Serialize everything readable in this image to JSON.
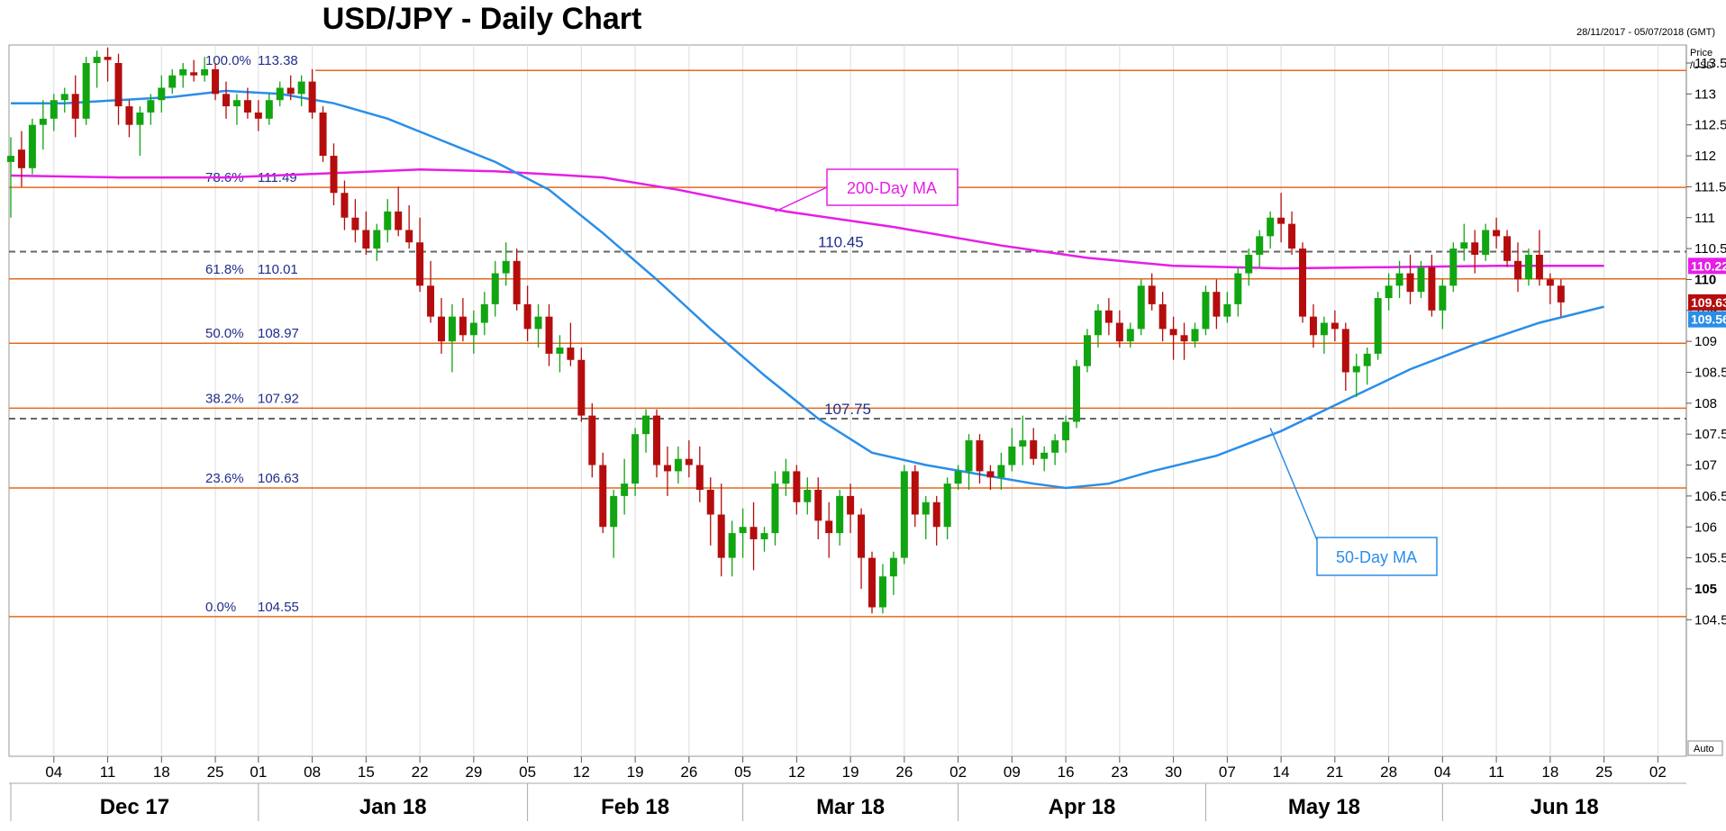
{
  "header": {
    "title": "USD/JPY - Daily Chart",
    "date_range": "28/11/2017 - 05/07/2018 (GMT)",
    "axis_unit_line1": "Price",
    "axis_unit_line2": "/USD",
    "auto_label": "Auto"
  },
  "colors": {
    "bull": "#11a511",
    "bear": "#b50d0d",
    "ma200": "#e61ee6",
    "ma50": "#2a8ee8",
    "fib_line": "#e3691e",
    "level_line": "#666666",
    "fib_text": "#1f2f8a"
  },
  "chart_data": {
    "type": "candlestick",
    "title": "USD/JPY - Daily Chart",
    "ylim": [
      104.55,
      113.7
    ],
    "y_ticks": [
      "104.5",
      "105",
      "105.5",
      "106",
      "106.5",
      "107",
      "107.5",
      "108",
      "108.5",
      "109",
      "109.5",
      "110",
      "110.5",
      "111",
      "111.5",
      "112",
      "112.5",
      "113",
      "113.5"
    ],
    "y_ticks_bold": [
      "105",
      "110"
    ],
    "day_ticks": [
      {
        "label": "04",
        "i": 4
      },
      {
        "label": "11",
        "i": 9
      },
      {
        "label": "18",
        "i": 14
      },
      {
        "label": "25",
        "i": 19
      },
      {
        "label": "01",
        "i": 23
      },
      {
        "label": "08",
        "i": 28
      },
      {
        "label": "15",
        "i": 33
      },
      {
        "label": "22",
        "i": 38
      },
      {
        "label": "29",
        "i": 43
      },
      {
        "label": "05",
        "i": 48
      },
      {
        "label": "12",
        "i": 53
      },
      {
        "label": "19",
        "i": 58
      },
      {
        "label": "26",
        "i": 63
      },
      {
        "label": "05",
        "i": 68
      },
      {
        "label": "12",
        "i": 73
      },
      {
        "label": "19",
        "i": 78
      },
      {
        "label": "26",
        "i": 83
      },
      {
        "label": "02",
        "i": 88
      },
      {
        "label": "09",
        "i": 93
      },
      {
        "label": "16",
        "i": 98
      },
      {
        "label": "23",
        "i": 103
      },
      {
        "label": "30",
        "i": 108
      },
      {
        "label": "07",
        "i": 113
      },
      {
        "label": "14",
        "i": 118
      },
      {
        "label": "21",
        "i": 123
      },
      {
        "label": "28",
        "i": 128
      },
      {
        "label": "04",
        "i": 133
      },
      {
        "label": "11",
        "i": 138
      },
      {
        "label": "18",
        "i": 143
      },
      {
        "label": "25",
        "i": 148
      },
      {
        "label": "02",
        "i": 153
      }
    ],
    "months": [
      {
        "label": "Dec 17",
        "start": 0,
        "end": 23
      },
      {
        "label": "Jan 18",
        "start": 23,
        "end": 48
      },
      {
        "label": "Feb 18",
        "start": 48,
        "end": 68
      },
      {
        "label": "Mar 18",
        "start": 68,
        "end": 88
      },
      {
        "label": "Apr 18",
        "start": 88,
        "end": 111
      },
      {
        "label": "May 18",
        "start": 111,
        "end": 133
      },
      {
        "label": "Jun 18",
        "start": 133,
        "end": 156
      }
    ],
    "fib_levels": [
      {
        "pct": "100.0%",
        "value": 113.38,
        "label": "113.38"
      },
      {
        "pct": "78.6%",
        "value": 111.49,
        "label": "111.49"
      },
      {
        "pct": "61.8%",
        "value": 110.01,
        "label": "110.01"
      },
      {
        "pct": "50.0%",
        "value": 108.97,
        "label": "108.97"
      },
      {
        "pct": "38.2%",
        "value": 107.92,
        "label": "107.92"
      },
      {
        "pct": "23.6%",
        "value": 106.63,
        "label": "106.63"
      },
      {
        "pct": "0.0%",
        "value": 104.55,
        "label": "104.55"
      }
    ],
    "levels": [
      {
        "value": 110.45,
        "label": "110.45"
      },
      {
        "value": 107.75,
        "label": "107.75"
      }
    ],
    "last_prices": [
      {
        "value": 110.22,
        "label": "110.22",
        "color": "#e61ee6"
      },
      {
        "value": 109.63,
        "label": "109.63",
        "color": "#b50d0d"
      },
      {
        "value": 109.56,
        "label": "109.56",
        "color": "#2a8ee8"
      }
    ],
    "annotations": [
      {
        "text": "200-Day MA",
        "color": "#e61ee6",
        "anchor_i": 71,
        "anchor_v": 111.1
      },
      {
        "text": "50-Day MA",
        "color": "#2a8ee8",
        "anchor_i": 117,
        "anchor_v": 107.6
      }
    ],
    "ma200": [
      [
        0,
        111.68
      ],
      [
        10,
        111.65
      ],
      [
        20,
        111.65
      ],
      [
        30,
        111.72
      ],
      [
        38,
        111.78
      ],
      [
        45,
        111.75
      ],
      [
        55,
        111.65
      ],
      [
        62,
        111.45
      ],
      [
        72,
        111.1
      ],
      [
        82,
        110.85
      ],
      [
        92,
        110.55
      ],
      [
        100,
        110.35
      ],
      [
        108,
        110.22
      ],
      [
        118,
        110.18
      ],
      [
        128,
        110.2
      ],
      [
        138,
        110.22
      ],
      [
        148,
        110.22
      ]
    ],
    "ma50": [
      [
        0,
        112.85
      ],
      [
        5,
        112.85
      ],
      [
        10,
        112.9
      ],
      [
        15,
        112.95
      ],
      [
        20,
        113.05
      ],
      [
        25,
        113.0
      ],
      [
        30,
        112.85
      ],
      [
        35,
        112.6
      ],
      [
        40,
        112.25
      ],
      [
        45,
        111.9
      ],
      [
        50,
        111.45
      ],
      [
        55,
        110.75
      ],
      [
        60,
        110.0
      ],
      [
        65,
        109.2
      ],
      [
        70,
        108.45
      ],
      [
        75,
        107.75
      ],
      [
        80,
        107.2
      ],
      [
        85,
        107.0
      ],
      [
        90,
        106.85
      ],
      [
        95,
        106.7
      ],
      [
        98,
        106.63
      ],
      [
        102,
        106.7
      ],
      [
        106,
        106.9
      ],
      [
        112,
        107.15
      ],
      [
        118,
        107.55
      ],
      [
        124,
        108.05
      ],
      [
        130,
        108.55
      ],
      [
        136,
        108.95
      ],
      [
        142,
        109.3
      ],
      [
        148,
        109.56
      ]
    ],
    "candles": [
      [
        111.9,
        112.3,
        111.0,
        112.0
      ],
      [
        112.1,
        112.4,
        111.5,
        111.8
      ],
      [
        111.8,
        112.6,
        111.7,
        112.5
      ],
      [
        112.5,
        112.9,
        112.1,
        112.6
      ],
      [
        112.6,
        113.0,
        112.4,
        112.9
      ],
      [
        112.9,
        113.1,
        112.7,
        113.0
      ],
      [
        113.0,
        113.3,
        112.3,
        112.6
      ],
      [
        112.6,
        113.6,
        112.5,
        113.5
      ],
      [
        113.5,
        113.7,
        113.1,
        113.6
      ],
      [
        113.6,
        113.75,
        113.2,
        113.55
      ],
      [
        113.5,
        113.65,
        112.5,
        112.8
      ],
      [
        112.8,
        112.9,
        112.3,
        112.5
      ],
      [
        112.5,
        112.8,
        112.0,
        112.7
      ],
      [
        112.7,
        113.0,
        112.5,
        112.9
      ],
      [
        112.9,
        113.3,
        112.7,
        113.1
      ],
      [
        113.1,
        113.4,
        113.0,
        113.3
      ],
      [
        113.3,
        113.5,
        113.1,
        113.4
      ],
      [
        113.35,
        113.55,
        113.2,
        113.3
      ],
      [
        113.3,
        113.6,
        113.2,
        113.4
      ],
      [
        113.4,
        113.5,
        112.9,
        113.0
      ],
      [
        113.0,
        113.2,
        112.6,
        112.8
      ],
      [
        112.8,
        113.0,
        112.5,
        112.9
      ],
      [
        112.9,
        113.1,
        112.6,
        112.7
      ],
      [
        112.7,
        112.9,
        112.4,
        112.6
      ],
      [
        112.6,
        113.0,
        112.5,
        112.9
      ],
      [
        112.9,
        113.2,
        112.8,
        113.1
      ],
      [
        113.1,
        113.3,
        112.9,
        113.0
      ],
      [
        113.0,
        113.3,
        112.8,
        113.2
      ],
      [
        113.2,
        113.4,
        112.6,
        112.7
      ],
      [
        112.7,
        112.8,
        111.9,
        112.0
      ],
      [
        112.0,
        112.2,
        111.2,
        111.4
      ],
      [
        111.4,
        111.6,
        110.8,
        111.0
      ],
      [
        111.0,
        111.3,
        110.6,
        110.8
      ],
      [
        110.8,
        111.1,
        110.4,
        110.5
      ],
      [
        110.5,
        110.9,
        110.3,
        110.8
      ],
      [
        110.8,
        111.3,
        110.6,
        111.1
      ],
      [
        111.1,
        111.5,
        110.7,
        110.8
      ],
      [
        110.8,
        111.2,
        110.5,
        110.6
      ],
      [
        110.6,
        111.0,
        109.8,
        109.9
      ],
      [
        109.9,
        110.3,
        109.3,
        109.4
      ],
      [
        109.4,
        109.7,
        108.8,
        109.0
      ],
      [
        109.0,
        109.6,
        108.5,
        109.4
      ],
      [
        109.4,
        109.7,
        109.0,
        109.1
      ],
      [
        109.1,
        109.5,
        108.8,
        109.3
      ],
      [
        109.3,
        109.8,
        109.1,
        109.6
      ],
      [
        109.6,
        110.3,
        109.4,
        110.1
      ],
      [
        110.1,
        110.6,
        109.9,
        110.3
      ],
      [
        110.3,
        110.5,
        109.5,
        109.6
      ],
      [
        109.6,
        109.9,
        109.0,
        109.2
      ],
      [
        109.2,
        109.6,
        108.9,
        109.4
      ],
      [
        109.4,
        109.6,
        108.6,
        108.8
      ],
      [
        108.8,
        109.1,
        108.5,
        108.9
      ],
      [
        108.9,
        109.3,
        108.6,
        108.7
      ],
      [
        108.7,
        108.9,
        107.7,
        107.8
      ],
      [
        107.8,
        108.0,
        106.8,
        107.0
      ],
      [
        107.0,
        107.2,
        105.9,
        106.0
      ],
      [
        106.0,
        106.6,
        105.5,
        106.5
      ],
      [
        106.5,
        107.1,
        106.2,
        106.7
      ],
      [
        106.7,
        107.6,
        106.5,
        107.5
      ],
      [
        107.5,
        107.9,
        107.2,
        107.8
      ],
      [
        107.8,
        107.9,
        106.8,
        107.0
      ],
      [
        107.0,
        107.3,
        106.5,
        106.9
      ],
      [
        106.9,
        107.3,
        106.7,
        107.1
      ],
      [
        107.1,
        107.4,
        106.8,
        107.0
      ],
      [
        107.0,
        107.3,
        106.4,
        106.6
      ],
      [
        106.6,
        106.8,
        105.7,
        106.2
      ],
      [
        106.2,
        106.7,
        105.2,
        105.5
      ],
      [
        105.5,
        106.1,
        105.2,
        105.9
      ],
      [
        105.9,
        106.3,
        105.5,
        106.0
      ],
      [
        106.0,
        106.4,
        105.3,
        105.8
      ],
      [
        105.8,
        106.0,
        105.6,
        105.9
      ],
      [
        105.9,
        106.9,
        105.7,
        106.7
      ],
      [
        106.7,
        107.1,
        106.5,
        106.9
      ],
      [
        106.9,
        107.0,
        106.2,
        106.4
      ],
      [
        106.4,
        106.8,
        106.2,
        106.6
      ],
      [
        106.6,
        106.8,
        105.8,
        106.1
      ],
      [
        106.1,
        106.4,
        105.5,
        105.9
      ],
      [
        105.9,
        106.6,
        105.7,
        106.5
      ],
      [
        106.5,
        106.7,
        105.9,
        106.2
      ],
      [
        106.2,
        106.3,
        105.0,
        105.5
      ],
      [
        105.5,
        105.6,
        104.6,
        104.7
      ],
      [
        104.7,
        105.4,
        104.6,
        105.2
      ],
      [
        105.2,
        105.6,
        104.9,
        105.5
      ],
      [
        105.5,
        107.0,
        105.4,
        106.9
      ],
      [
        106.9,
        107.0,
        106.0,
        106.2
      ],
      [
        106.2,
        106.5,
        105.8,
        106.4
      ],
      [
        106.4,
        106.5,
        105.7,
        106.0
      ],
      [
        106.0,
        106.8,
        105.8,
        106.7
      ],
      [
        106.7,
        107.0,
        106.6,
        106.9
      ],
      [
        106.9,
        107.5,
        106.6,
        107.4
      ],
      [
        107.4,
        107.5,
        106.7,
        106.9
      ],
      [
        106.9,
        107.0,
        106.6,
        106.8
      ],
      [
        106.8,
        107.2,
        106.6,
        107.0
      ],
      [
        107.0,
        107.6,
        106.9,
        107.3
      ],
      [
        107.3,
        107.8,
        107.0,
        107.4
      ],
      [
        107.4,
        107.6,
        107.0,
        107.1
      ],
      [
        107.1,
        107.3,
        106.9,
        107.2
      ],
      [
        107.2,
        107.5,
        107.0,
        107.4
      ],
      [
        107.4,
        107.8,
        107.2,
        107.7
      ],
      [
        107.7,
        108.7,
        107.6,
        108.6
      ],
      [
        108.6,
        109.2,
        108.5,
        109.1
      ],
      [
        109.1,
        109.6,
        108.9,
        109.5
      ],
      [
        109.5,
        109.7,
        109.1,
        109.3
      ],
      [
        109.3,
        109.5,
        108.9,
        109.0
      ],
      [
        109.0,
        109.3,
        108.9,
        109.2
      ],
      [
        109.2,
        110.0,
        109.1,
        109.9
      ],
      [
        109.9,
        110.1,
        109.5,
        109.6
      ],
      [
        109.6,
        109.8,
        109.0,
        109.2
      ],
      [
        109.2,
        109.4,
        108.7,
        109.1
      ],
      [
        109.1,
        109.3,
        108.7,
        109.0
      ],
      [
        109.0,
        109.3,
        108.9,
        109.2
      ],
      [
        109.2,
        109.9,
        109.1,
        109.8
      ],
      [
        109.8,
        110.0,
        109.2,
        109.4
      ],
      [
        109.4,
        109.8,
        109.3,
        109.6
      ],
      [
        109.6,
        110.2,
        109.4,
        110.1
      ],
      [
        110.1,
        110.5,
        109.9,
        110.4
      ],
      [
        110.4,
        110.8,
        110.2,
        110.7
      ],
      [
        110.7,
        111.1,
        110.5,
        111.0
      ],
      [
        111.0,
        111.4,
        110.6,
        110.9
      ],
      [
        110.9,
        111.1,
        110.4,
        110.5
      ],
      [
        110.5,
        110.6,
        109.3,
        109.4
      ],
      [
        109.4,
        109.6,
        108.9,
        109.1
      ],
      [
        109.1,
        109.4,
        108.8,
        109.3
      ],
      [
        109.3,
        109.5,
        109.0,
        109.2
      ],
      [
        109.2,
        109.3,
        108.2,
        108.5
      ],
      [
        108.5,
        108.8,
        108.1,
        108.6
      ],
      [
        108.6,
        108.9,
        108.3,
        108.8
      ],
      [
        108.8,
        109.8,
        108.7,
        109.7
      ],
      [
        109.7,
        110.1,
        109.5,
        109.9
      ],
      [
        109.9,
        110.3,
        109.7,
        110.1
      ],
      [
        110.1,
        110.4,
        109.6,
        109.8
      ],
      [
        109.8,
        110.3,
        109.7,
        110.2
      ],
      [
        110.2,
        110.4,
        109.4,
        109.5
      ],
      [
        109.5,
        110.0,
        109.2,
        109.9
      ],
      [
        109.9,
        110.6,
        109.8,
        110.5
      ],
      [
        110.5,
        110.9,
        110.3,
        110.6
      ],
      [
        110.6,
        110.8,
        110.1,
        110.4
      ],
      [
        110.4,
        110.9,
        110.3,
        110.8
      ],
      [
        110.8,
        111.0,
        110.5,
        110.7
      ],
      [
        110.7,
        110.8,
        110.2,
        110.3
      ],
      [
        110.3,
        110.6,
        109.8,
        110.0
      ],
      [
        110.0,
        110.5,
        109.9,
        110.4
      ],
      [
        110.4,
        110.8,
        109.9,
        110.0
      ],
      [
        110.0,
        110.1,
        109.6,
        109.9
      ],
      [
        109.9,
        110.0,
        109.4,
        109.63
      ]
    ]
  }
}
